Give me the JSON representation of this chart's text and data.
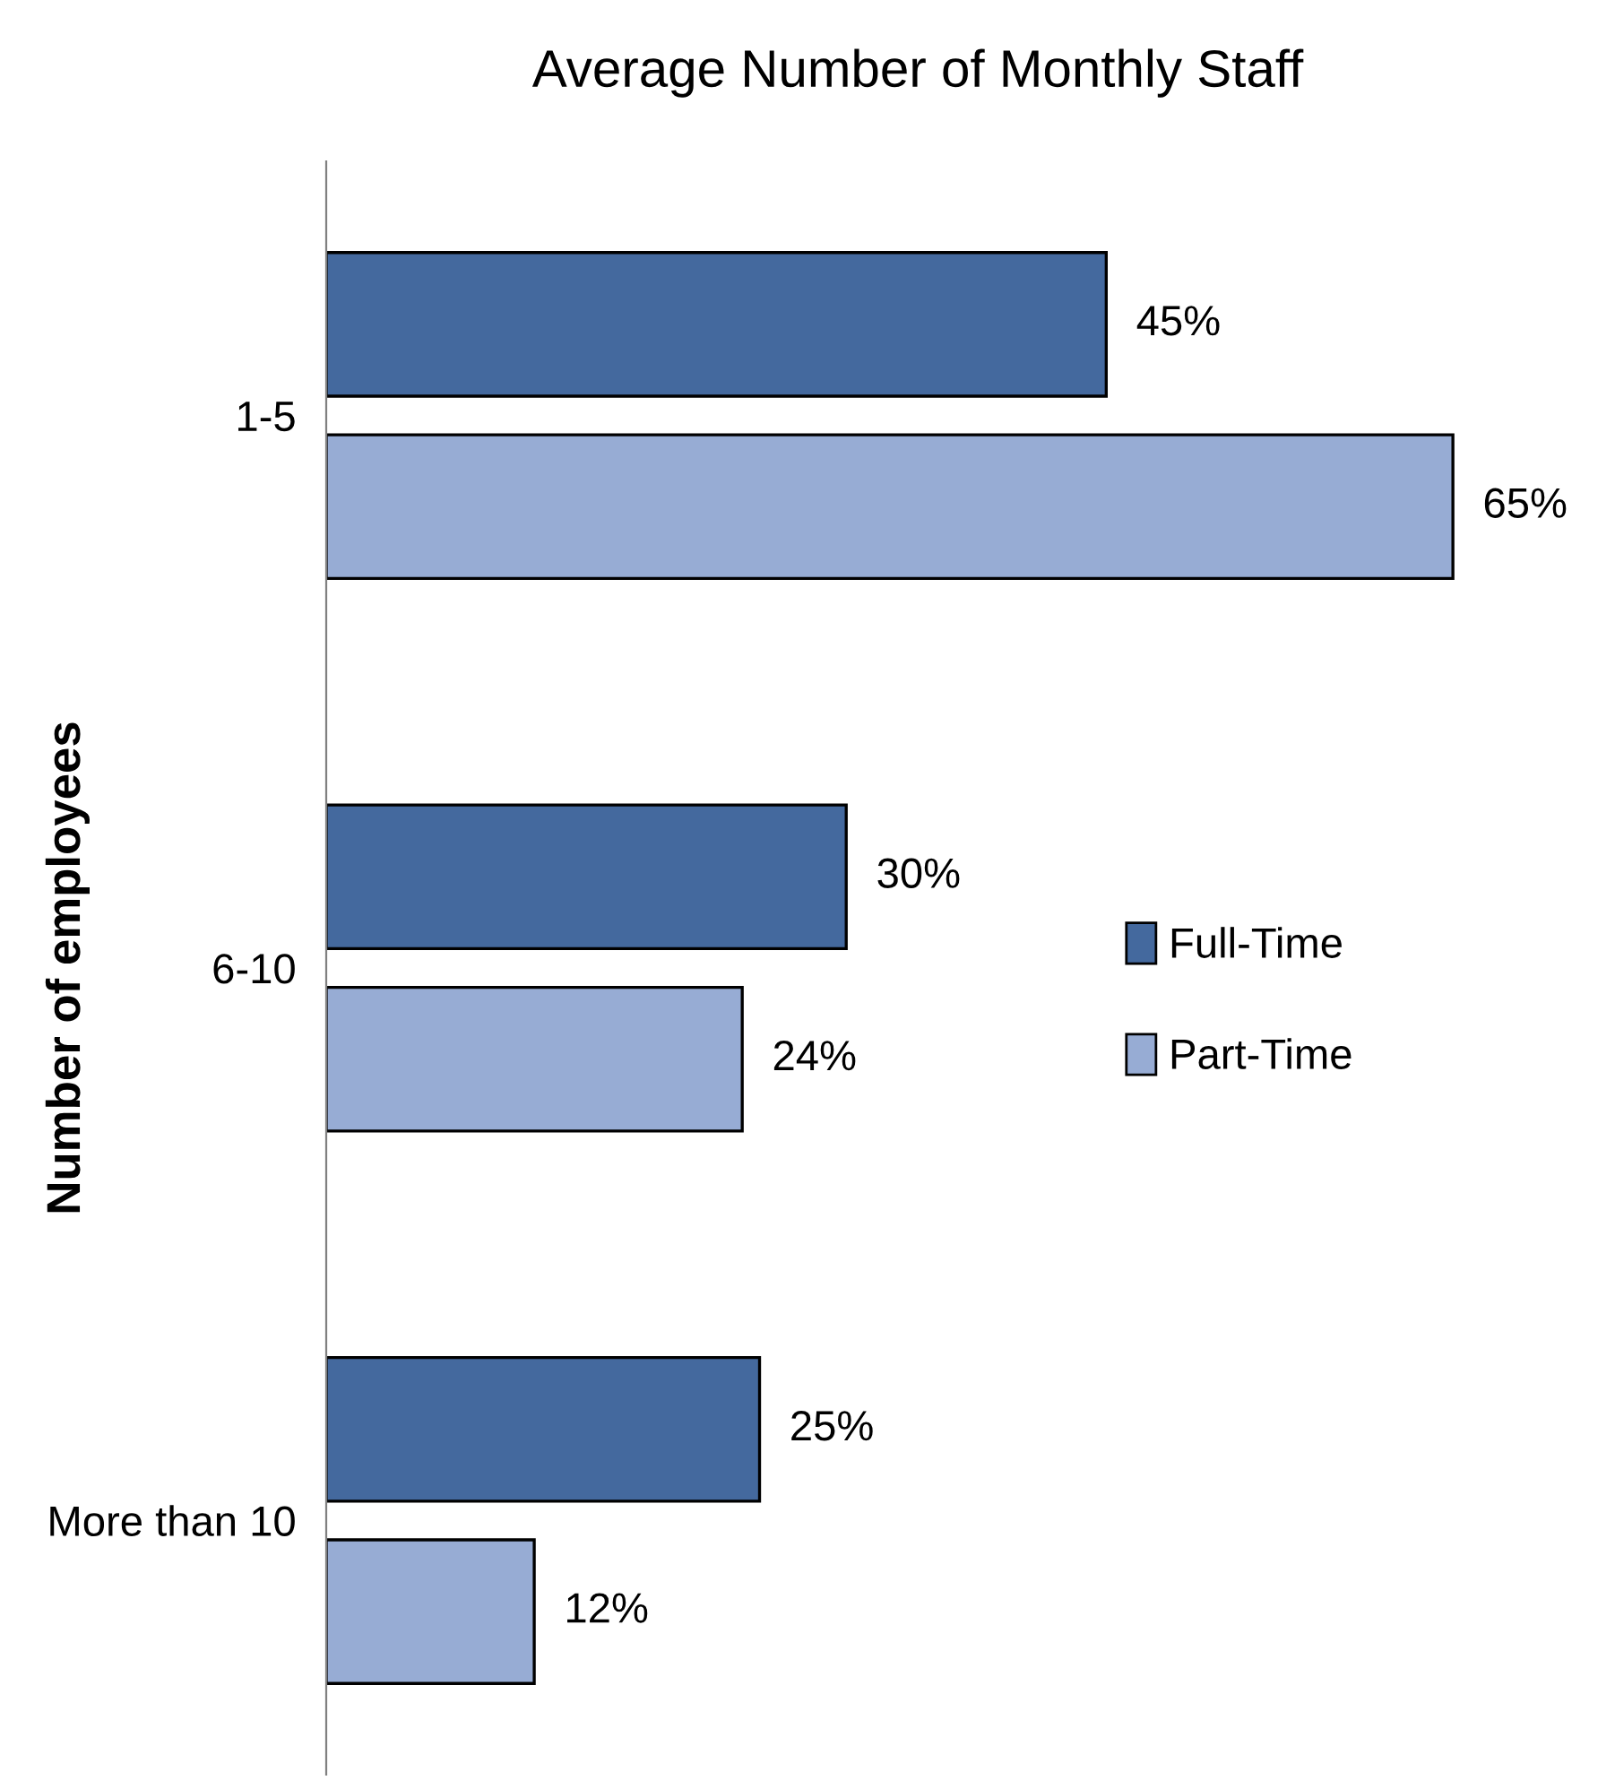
{
  "chart_data": {
    "type": "bar",
    "orientation": "horizontal",
    "title": "Average Number of Monthly Staff",
    "ylabel": "Number of employees",
    "categories": [
      "1-5",
      "6-10",
      "More than 10"
    ],
    "series": [
      {
        "name": "Full-Time",
        "color": "#44699e",
        "values": [
          45,
          30,
          25
        ],
        "value_labels": [
          "45%",
          "30%",
          "25%"
        ]
      },
      {
        "name": "Part-Time",
        "color": "#97acd4",
        "values": [
          65,
          24,
          12
        ],
        "value_labels": [
          "65%",
          "24%",
          "12%"
        ]
      }
    ],
    "tick_labels": "y",
    "grid": false,
    "legend": "right"
  }
}
